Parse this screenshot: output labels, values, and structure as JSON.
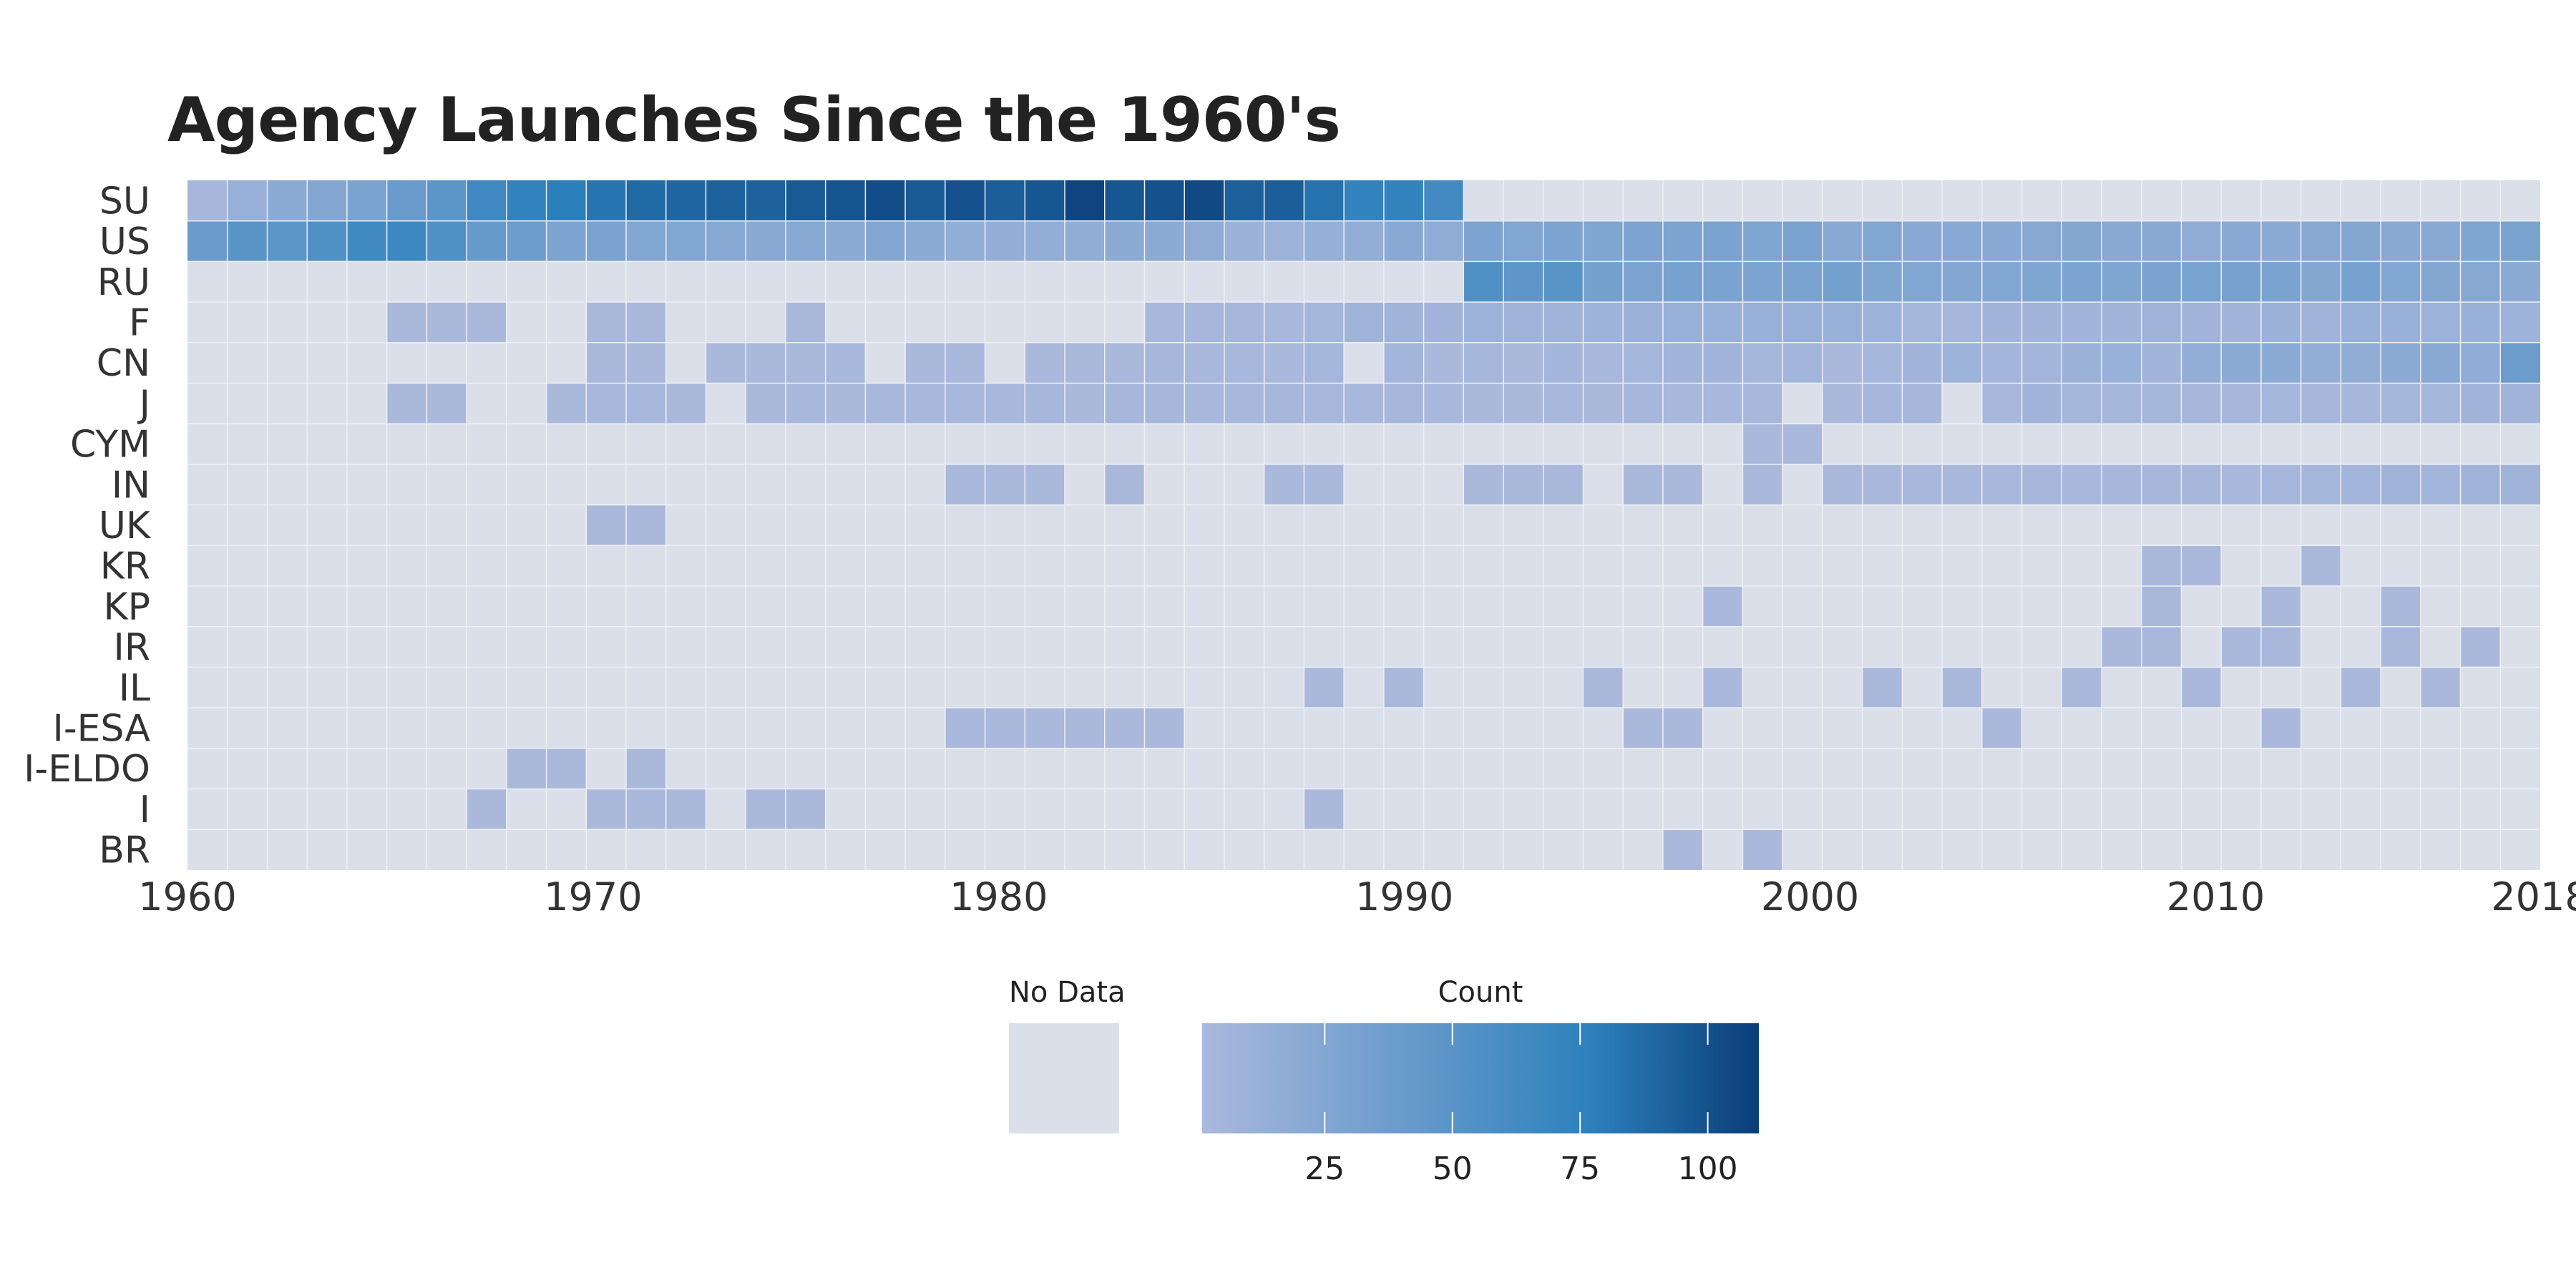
{
  "chart_data": {
    "type": "heatmap",
    "title": "Agency Launches Since the 1960's",
    "xlabel": "",
    "ylabel": "",
    "x_range": [
      1960,
      2018
    ],
    "x_ticks": [
      "1960",
      "1970",
      "1980",
      "1990",
      "2000",
      "2010",
      "2018"
    ],
    "y_categories": [
      "SU",
      "US",
      "RU",
      "F",
      "CN",
      "J",
      "CYM",
      "IN",
      "UK",
      "KR",
      "KP",
      "IR",
      "IL",
      "I-ESA",
      "I-ELDO",
      "I",
      "BR"
    ],
    "value_label": "Count",
    "no_data_label": "No Data",
    "colorbar_ticks": [
      25,
      50,
      75,
      100
    ],
    "colorbar_range": [
      1,
      110
    ],
    "colors": {
      "no_data": "#dadfe9",
      "low": "#aab8dc",
      "mid": "#2c80bc",
      "high": "#0a3d78",
      "grid": "#eef0f5"
    },
    "series": [
      {
        "name": "SU",
        "start": 1960,
        "values": [
          3,
          12,
          20,
          24,
          30,
          40,
          48,
          66,
          74,
          78,
          82,
          88,
          90,
          92,
          92,
          96,
          99,
          102,
          96,
          100,
          94,
          98,
          106,
          98,
          100,
          104,
          93,
          94,
          84,
          73,
          73,
          63
        ]
      },
      {
        "name": "US",
        "start": 1960,
        "values": [
          40,
          50,
          48,
          55,
          65,
          67,
          55,
          42,
          38,
          28,
          29,
          25,
          25,
          23,
          21,
          22,
          20,
          24,
          20,
          15,
          14,
          15,
          16,
          19,
          20,
          17,
          10,
          9,
          13,
          15,
          21,
          17,
          28,
          26,
          28,
          27,
          28,
          28,
          30,
          27,
          30,
          22,
          25,
          21,
          22,
          22,
          23,
          24,
          22,
          22,
          17,
          21,
          20,
          23,
          24,
          22,
          22,
          27,
          30
        ]
      },
      {
        "name": "RU",
        "start": 1992,
        "values": [
          55,
          47,
          50,
          33,
          28,
          32,
          30,
          28,
          30,
          34,
          27,
          25,
          24,
          25,
          27,
          28,
          27,
          29,
          31,
          32,
          30,
          24,
          32,
          26,
          24,
          23,
          19
        ]
      },
      {
        "name": "F",
        "start": 1960,
        "values": [
          0,
          0,
          0,
          0,
          0,
          1,
          1,
          1,
          0,
          0,
          1,
          1,
          0,
          0,
          0,
          1,
          0,
          0,
          0,
          0,
          0,
          0,
          0,
          0,
          2,
          3,
          3,
          2,
          4,
          7,
          7,
          6,
          9,
          7,
          7,
          8,
          10,
          11,
          11,
          12,
          12,
          12,
          8,
          4,
          3,
          6,
          6,
          6,
          6,
          7,
          6,
          6,
          10,
          7,
          11,
          11,
          9,
          11,
          8
        ]
      },
      {
        "name": "CN",
        "start": 1960,
        "values": [
          0,
          0,
          0,
          0,
          0,
          0,
          0,
          0,
          0,
          0,
          1,
          1,
          0,
          1,
          1,
          1,
          2,
          0,
          1,
          1,
          0,
          1,
          1,
          1,
          3,
          2,
          2,
          1,
          4,
          0,
          5,
          1,
          4,
          1,
          5,
          2,
          4,
          6,
          6,
          4,
          5,
          1,
          4,
          6,
          8,
          5,
          5,
          10,
          11,
          6,
          15,
          19,
          19,
          15,
          16,
          19,
          22,
          18,
          39
        ]
      },
      {
        "name": "J",
        "start": 1960,
        "values": [
          0,
          0,
          0,
          0,
          0,
          1,
          1,
          0,
          0,
          1,
          2,
          2,
          1,
          0,
          1,
          2,
          1,
          2,
          2,
          2,
          2,
          3,
          1,
          3,
          3,
          2,
          2,
          3,
          2,
          2,
          3,
          2,
          1,
          1,
          2,
          1,
          3,
          2,
          2,
          2,
          0,
          1,
          3,
          3,
          0,
          2,
          6,
          4,
          4,
          4,
          3,
          3,
          4,
          3,
          3,
          4,
          4,
          6,
          6
        ]
      },
      {
        "name": "CYM",
        "start": 1999,
        "values": [
          1,
          1
        ]
      },
      {
        "name": "IN",
        "start": 1979,
        "values": [
          1,
          1,
          1,
          0,
          1,
          0,
          0,
          0,
          1,
          1,
          0,
          0,
          0,
          1,
          1,
          1,
          0,
          1,
          1,
          0,
          1,
          0,
          1,
          1,
          2,
          1,
          2,
          3,
          2,
          3,
          3,
          3,
          2,
          3,
          4,
          5,
          7,
          5,
          7,
          7
        ]
      },
      {
        "name": "UK",
        "start": 1970,
        "values": [
          1,
          1
        ]
      },
      {
        "name": "KR",
        "start": 2009,
        "values": [
          1,
          1,
          0,
          0,
          1
        ]
      },
      {
        "name": "KP",
        "start": 1998,
        "values": [
          1,
          0,
          0,
          0,
          0,
          0,
          0,
          0,
          0,
          0,
          0,
          1,
          0,
          0,
          1,
          0,
          0,
          1
        ]
      },
      {
        "name": "IR",
        "start": 2008,
        "values": [
          1,
          1,
          0,
          1,
          1,
          0,
          0,
          1,
          0,
          1
        ]
      },
      {
        "name": "IL",
        "start": 1988,
        "values": [
          1,
          0,
          1,
          0,
          0,
          0,
          0,
          1,
          0,
          0,
          1,
          0,
          0,
          0,
          1,
          0,
          1,
          0,
          0,
          1,
          0,
          0,
          1,
          0,
          0,
          0,
          1,
          0,
          1
        ]
      },
      {
        "name": "I-ESA",
        "start": 1979,
        "values": [
          1,
          1,
          1,
          1,
          1,
          1,
          0,
          0,
          0,
          0,
          0,
          0,
          0,
          0,
          0,
          0,
          0,
          1,
          1,
          0,
          0,
          0,
          0,
          0,
          0,
          0,
          1,
          0,
          0,
          0,
          0,
          0,
          0,
          1
        ]
      },
      {
        "name": "I-ELDO",
        "start": 1968,
        "values": [
          1,
          1,
          0,
          1
        ]
      },
      {
        "name": "I",
        "start": 1967,
        "values": [
          1,
          0,
          0,
          1,
          1,
          1,
          0,
          1,
          1,
          0,
          0,
          0,
          0,
          0,
          0,
          0,
          0,
          0,
          0,
          0,
          0,
          1
        ]
      },
      {
        "name": "BR",
        "start": 1997,
        "values": [
          1,
          0,
          1
        ]
      }
    ]
  }
}
